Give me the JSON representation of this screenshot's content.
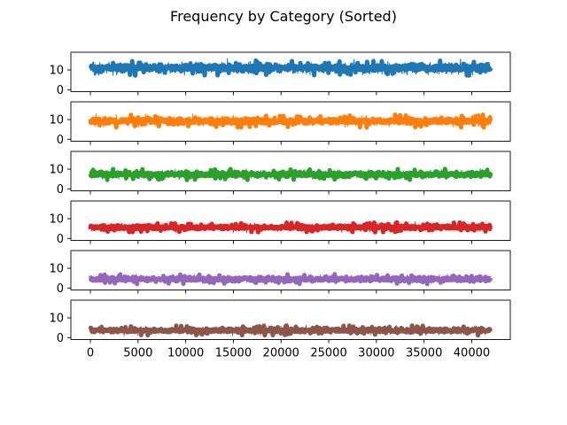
{
  "chart_data": {
    "type": "line",
    "title": "Frequency by Category (Sorted)",
    "layout": "6 vertically stacked subplots sharing the x axis; x tick labels only on the bottom subplot",
    "x_range": [
      0,
      42000
    ],
    "x_ticks": [
      0,
      5000,
      10000,
      15000,
      20000,
      25000,
      30000,
      35000,
      40000
    ],
    "y_ticks": [
      0,
      10
    ],
    "ylim": [
      -1,
      19
    ],
    "grid": false,
    "legend": "none",
    "series": [
      {
        "color": "#1f77b4",
        "mean": 11.0,
        "spread": 1.4,
        "min": 7.2,
        "max": 17.5
      },
      {
        "color": "#ff7f0e",
        "mean": 9.2,
        "spread": 1.2,
        "min": 6.0,
        "max": 13.0
      },
      {
        "color": "#2ca02c",
        "mean": 7.3,
        "spread": 1.0,
        "min": 4.5,
        "max": 11.5
      },
      {
        "color": "#d62728",
        "mean": 5.6,
        "spread": 0.9,
        "min": 2.6,
        "max": 8.6
      },
      {
        "color": "#9467bd",
        "mean": 4.5,
        "spread": 0.9,
        "min": 1.4,
        "max": 7.2
      },
      {
        "color": "#8c564b",
        "mean": 3.6,
        "spread": 0.9,
        "min": 0.5,
        "max": 6.3
      }
    ]
  }
}
